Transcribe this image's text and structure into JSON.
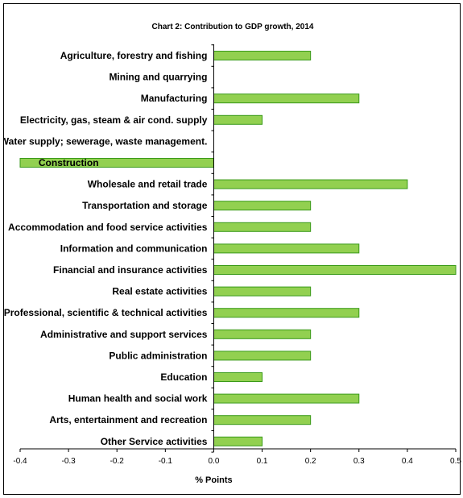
{
  "chart_data": {
    "type": "bar",
    "orientation": "horizontal",
    "title": "Chart 2: Contribution to GDP growth, 2014",
    "xlabel": "% Points",
    "ylabel": "",
    "xlim": [
      -0.4,
      0.5
    ],
    "x_ticks": [
      "-0.4",
      "-0.3",
      "-0.2",
      "-0.1",
      "0.0",
      "0.1",
      "0.2",
      "0.3",
      "0.4",
      "0.5"
    ],
    "grid": false,
    "bar_color": "#92d050",
    "bar_edge_color": "#3a9a1a",
    "categories": [
      "Agriculture,  forestry and fishing",
      "Mining and quarrying",
      "Manufacturing",
      "Electricity, gas, steam & air cond. supply",
      "Water supply; sewerage, waste management.",
      "Construction",
      "Wholesale and retail trade",
      "Transportation and storage",
      "Accommodation and food service activities",
      "Information and communication",
      "Financial and insurance activities",
      "Real estate activities",
      "Professional, scientific & technical  activities",
      "Administrative and support services",
      "Public administration",
      "Education",
      "Human health and social work",
      "Arts, entertainment and recreation",
      "Other Service activities"
    ],
    "values": [
      0.2,
      0.0,
      0.3,
      0.1,
      0.0,
      -0.4,
      0.4,
      0.2,
      0.2,
      0.3,
      0.5,
      0.2,
      0.3,
      0.2,
      0.2,
      0.1,
      0.3,
      0.2,
      0.1
    ]
  }
}
